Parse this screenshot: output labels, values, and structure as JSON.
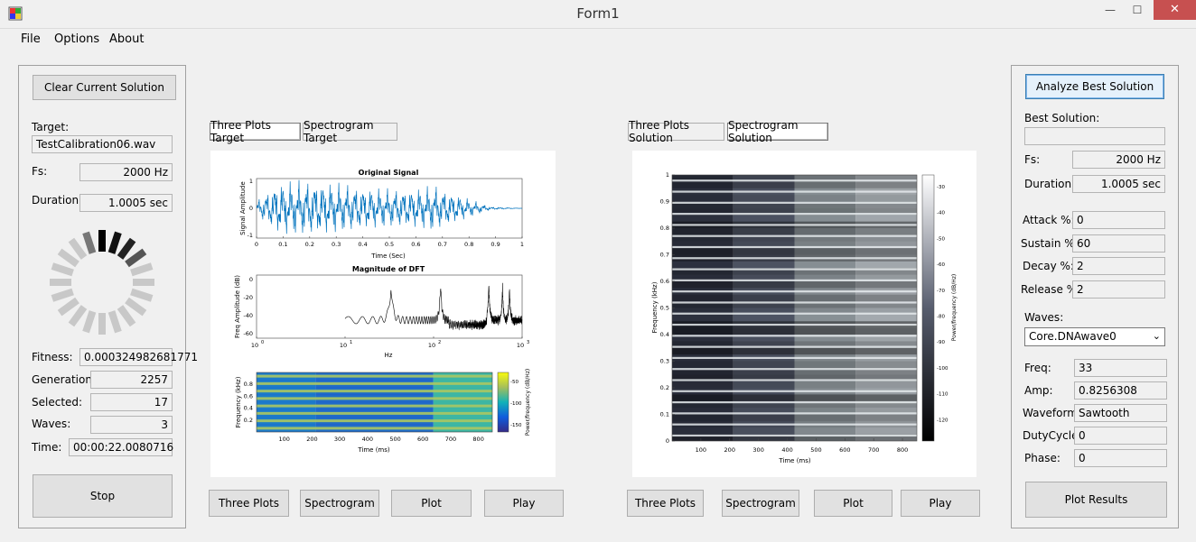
{
  "window": {
    "title": "Form1",
    "minimize": "—",
    "maximize": "☐",
    "close": "✕"
  },
  "menu": {
    "file": "File",
    "options": "Options",
    "about": "About"
  },
  "left": {
    "clear_button": "Clear Current Solution",
    "target_label": "Target:",
    "target_value": "TestCalibration06.wav",
    "fs_label": "Fs:",
    "fs_value": "2000 Hz",
    "duration_label": "Duration:",
    "duration_value": "1.0005 sec",
    "fitness_label": "Fitness:",
    "fitness_value": "0.000324982681771",
    "generation_label": "Generation:",
    "generation_value": "2257",
    "selected_label": "Selected:",
    "selected_value": "17",
    "waves_label": "Waves:",
    "waves_value": "3",
    "time_label": "Time:",
    "time_value": "00:00:22.0080716",
    "stop_button": "Stop"
  },
  "target": {
    "tab_three_plots": "Three Plots Target",
    "tab_spectrogram": "Spectrogram Target",
    "btn_three_plots": "Three Plots",
    "btn_spectrogram": "Spectrogram",
    "btn_plot": "Plot",
    "btn_play": "Play"
  },
  "target_plots": {
    "signal_title": "Original Signal",
    "signal_ylabel": "Signal Amplitude",
    "signal_xlabel": "Time (Sec)",
    "signal_xticks": [
      "0",
      "0.1",
      "0.2",
      "0.3",
      "0.4",
      "0.5",
      "0.6",
      "0.7",
      "0.8",
      "0.9",
      "1"
    ],
    "signal_yticks": [
      "1",
      "0",
      "-1"
    ],
    "dft_title": "Magnitude of DFT",
    "dft_ylabel": "Freq Amplitude (dB)",
    "dft_xlabel": "Hz",
    "dft_yticks": [
      "0",
      "-20",
      "-40",
      "-60"
    ],
    "dft_xticks": [
      "10",
      "10",
      "10",
      "10"
    ],
    "dft_xexp": [
      "0",
      "1",
      "2",
      "3"
    ],
    "spec_ylabel": "Frequency (kHz)",
    "spec_xlabel": "Time (ms)",
    "spec_xticks": [
      "100",
      "200",
      "300",
      "400",
      "500",
      "600",
      "700",
      "800"
    ],
    "spec_yticks": [
      "0.8",
      "0.6",
      "0.4",
      "0.2"
    ],
    "spec_cbar_label": "Power/frequency (dB/Hz)",
    "spec_cbar_ticks": [
      "-50",
      "-100",
      "-150"
    ]
  },
  "solution": {
    "tab_three_plots": "Three Plots Solution",
    "tab_spectrogram": "Spectrogram Solution",
    "btn_three_plots": "Three Plots",
    "btn_spectrogram": "Spectrogram",
    "btn_plot": "Plot",
    "btn_play": "Play"
  },
  "solution_plot": {
    "ylabel": "Frequency (kHz)",
    "xlabel": "Time (ms)",
    "yticks": [
      "1",
      "0.9",
      "0.8",
      "0.7",
      "0.6",
      "0.5",
      "0.4",
      "0.3",
      "0.2",
      "0.1",
      "0"
    ],
    "xticks": [
      "100",
      "200",
      "300",
      "400",
      "500",
      "600",
      "700",
      "800"
    ],
    "cbar_label": "Power/frequency (dB/Hz)",
    "cbar_ticks": [
      "-30",
      "-40",
      "-50",
      "-60",
      "-70",
      "-80",
      "-90",
      "-100",
      "-110",
      "-120"
    ]
  },
  "right": {
    "analyze_button": "Analyze Best Solution",
    "best_label": "Best Solution:",
    "best_value": "",
    "fs_label": "Fs:",
    "fs_value": "2000 Hz",
    "duration_label": "Duration:",
    "duration_value": "1.0005 sec",
    "attack_label": "Attack %:",
    "attack_value": "0",
    "sustain_label": "Sustain %:",
    "sustain_value": "60",
    "decay_label": "Decay %:",
    "decay_value": "2",
    "release_label": "Release %:",
    "release_value": "2",
    "waves_label": "Waves:",
    "waves_value": "Core.DNAwave0",
    "freq_label": "Freq:",
    "freq_value": "33",
    "amp_label": "Amp:",
    "amp_value": "0.8256308",
    "waveform_label": "Waveform:",
    "waveform_value": "Sawtooth",
    "dutycycle_label": "DutyCycle:",
    "dutycycle_value": "0",
    "phase_label": "Phase:",
    "phase_value": "0",
    "plot_results_button": "Plot Results"
  },
  "colors": {
    "signal": "#0072bd",
    "close_button": "#c75050"
  }
}
